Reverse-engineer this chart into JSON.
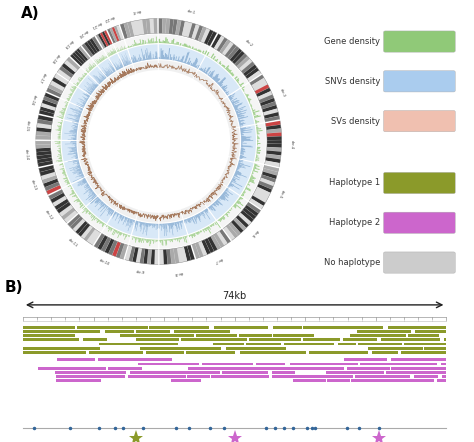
{
  "title_a": "A)",
  "title_b": "B)",
  "legend_top": {
    "Gene density": "#90c978",
    "SNVs density": "#aaccee",
    "SVs density": "#f0c0b0"
  },
  "legend_bottom": {
    "Haplotype 1": "#8b9a2a",
    "Haplotype 2": "#cc66cc",
    "No haplotype": "#cccccc"
  },
  "chromosomes": [
    "chr-1",
    "chr-2",
    "chr-3",
    "chr-4",
    "chr-5",
    "chr-6",
    "chr-7",
    "chr-8",
    "chr-9",
    "chr-10",
    "chr-11",
    "chr-12",
    "chr-13",
    "chr-14",
    "chr-15",
    "chr-16",
    "chr-17",
    "chr-18",
    "chr-19",
    "chr-20",
    "chr-21",
    "chr-22",
    "chr-X"
  ],
  "chrom_sizes": [
    248,
    242,
    198,
    190,
    182,
    171,
    159,
    146,
    138,
    133,
    135,
    133,
    114,
    107,
    101,
    90,
    83,
    80,
    58,
    64,
    47,
    50,
    155
  ],
  "gene_color": "#90c978",
  "snv_color": "#aaccee",
  "sv_color": "#f0c0b0",
  "kary_red": "#cc4444",
  "scale_label": "74kb",
  "hap1_color": "#8b9a2a",
  "hap2_color": "#cc66cc",
  "nohap_color": "#cccccc",
  "star_hap1_color": "#8b9a2a",
  "star_hap2_color": "#cc66cc",
  "arrow_color": "#222222",
  "bg_color": "#ffffff"
}
